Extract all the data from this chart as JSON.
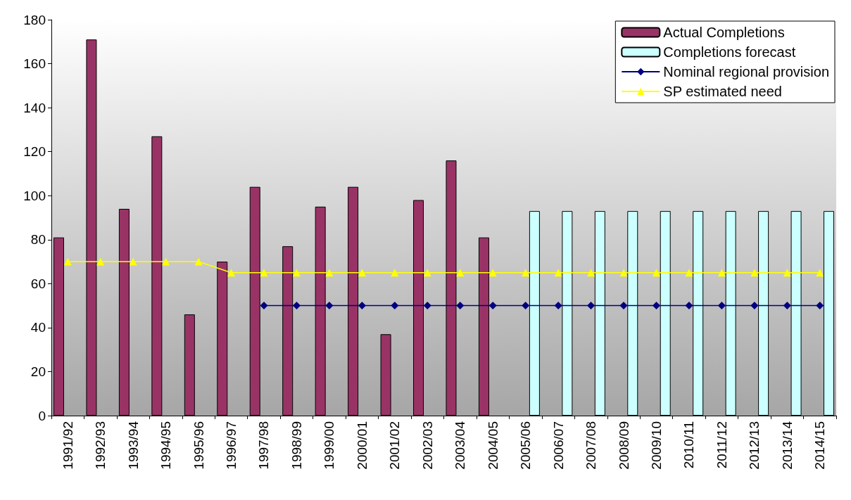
{
  "chart_data": {
    "type": "bar",
    "categories": [
      "1991/92",
      "1992/93",
      "1993/94",
      "1994/95",
      "1995/96",
      "1996/97",
      "1997/98",
      "1998/99",
      "1999/00",
      "2000/01",
      "2001/02",
      "2002/03",
      "2003/04",
      "2004/05",
      "2005/06",
      "2006/07",
      "2007/08",
      "2008/09",
      "2009/10",
      "2010/11",
      "2011/12",
      "2012/13",
      "2013/14",
      "2014/15"
    ],
    "series": [
      {
        "name": "Actual Completions",
        "color": "#993366",
        "values": [
          81,
          171,
          94,
          127,
          46,
          70,
          104,
          77,
          95,
          104,
          37,
          98,
          116,
          81,
          null,
          null,
          null,
          null,
          null,
          null,
          null,
          null,
          null,
          null
        ]
      },
      {
        "name": "Completions forecast",
        "color": "#ccffff",
        "values": [
          null,
          null,
          null,
          null,
          null,
          null,
          null,
          null,
          null,
          null,
          null,
          null,
          null,
          null,
          93,
          93,
          93,
          93,
          93,
          93,
          93,
          93,
          93,
          93
        ]
      },
      {
        "name": "Nominal regional provision",
        "type": "line",
        "color": "#000080",
        "marker": "diamond",
        "values": [
          null,
          null,
          null,
          null,
          null,
          null,
          50,
          50,
          50,
          50,
          50,
          50,
          50,
          50,
          50,
          50,
          50,
          50,
          50,
          50,
          50,
          50,
          50,
          50
        ]
      },
      {
        "name": "SP estimated need",
        "type": "line",
        "color": "#ffff00",
        "marker": "triangle",
        "values": [
          70,
          70,
          70,
          70,
          70,
          65,
          65,
          65,
          65,
          65,
          65,
          65,
          65,
          65,
          65,
          65,
          65,
          65,
          65,
          65,
          65,
          65,
          65,
          65
        ]
      }
    ],
    "ylim": [
      0,
      180
    ],
    "yticks": [
      0,
      20,
      40,
      60,
      80,
      100,
      120,
      140,
      160,
      180
    ],
    "grid": false,
    "legend": "top right"
  }
}
